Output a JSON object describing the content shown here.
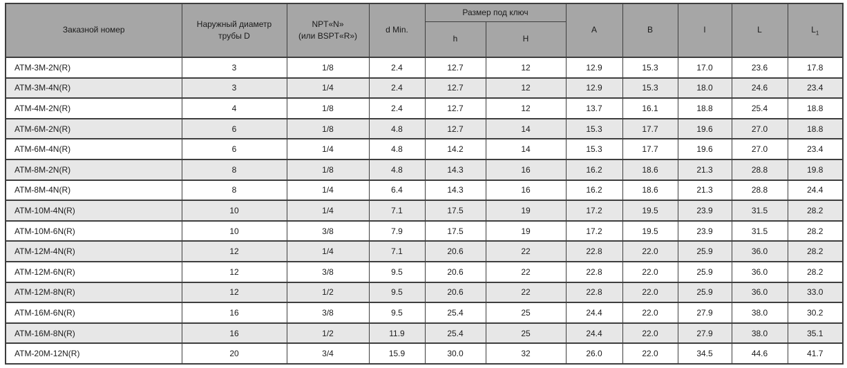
{
  "colors": {
    "header_bg": "#a6a6a6",
    "row_bg": "#ffffff",
    "row_alt_bg": "#e7e7e7",
    "border": "#3d3d3d",
    "text": "#1a1a1a"
  },
  "table": {
    "header": {
      "order_number": "Заказной номер",
      "outer_diameter": "Наружный диаметр\nтрубы D",
      "thread": "NPT«N»\n(или BSPT«R»)",
      "d_min": "d Min.",
      "wrench_size_group": "Размер под ключ",
      "wrench_h": "h",
      "wrench_H": "H",
      "col_A": "A",
      "col_B": "B",
      "col_l": "l",
      "col_L": "L",
      "col_L1_base": "L",
      "col_L1_sub": "1"
    },
    "row_keys": [
      "order",
      "D",
      "npt",
      "d_min",
      "h",
      "H",
      "A",
      "B",
      "l",
      "L",
      "L1"
    ],
    "rows": [
      {
        "order": "ATM-3M-2N(R)",
        "D": "3",
        "npt": "1/8",
        "d_min": "2.4",
        "h": "12.7",
        "H": "12",
        "A": "12.9",
        "B": "15.3",
        "l": "17.0",
        "L": "23.6",
        "L1": "17.8"
      },
      {
        "order": "ATM-3M-4N(R)",
        "D": "3",
        "npt": "1/4",
        "d_min": "2.4",
        "h": "12.7",
        "H": "12",
        "A": "12.9",
        "B": "15.3",
        "l": "18.0",
        "L": "24.6",
        "L1": "23.4"
      },
      {
        "order": "ATM-4M-2N(R)",
        "D": "4",
        "npt": "1/8",
        "d_min": "2.4",
        "h": "12.7",
        "H": "12",
        "A": "13.7",
        "B": "16.1",
        "l": "18.8",
        "L": "25.4",
        "L1": "18.8"
      },
      {
        "order": "ATM-6M-2N(R)",
        "D": "6",
        "npt": "1/8",
        "d_min": "4.8",
        "h": "12.7",
        "H": "14",
        "A": "15.3",
        "B": "17.7",
        "l": "19.6",
        "L": "27.0",
        "L1": "18.8"
      },
      {
        "order": "ATM-6M-4N(R)",
        "D": "6",
        "npt": "1/4",
        "d_min": "4.8",
        "h": "14.2",
        "H": "14",
        "A": "15.3",
        "B": "17.7",
        "l": "19.6",
        "L": "27.0",
        "L1": "23.4"
      },
      {
        "order": "ATM-8M-2N(R)",
        "D": "8",
        "npt": "1/8",
        "d_min": "4.8",
        "h": "14.3",
        "H": "16",
        "A": "16.2",
        "B": "18.6",
        "l": "21.3",
        "L": "28.8",
        "L1": "19.8"
      },
      {
        "order": "ATM-8M-4N(R)",
        "D": "8",
        "npt": "1/4",
        "d_min": "6.4",
        "h": "14.3",
        "H": "16",
        "A": "16.2",
        "B": "18.6",
        "l": "21.3",
        "L": "28.8",
        "L1": "24.4"
      },
      {
        "order": "ATM-10M-4N(R)",
        "D": "10",
        "npt": "1/4",
        "d_min": "7.1",
        "h": "17.5",
        "H": "19",
        "A": "17.2",
        "B": "19.5",
        "l": "23.9",
        "L": "31.5",
        "L1": "28.2"
      },
      {
        "order": "ATM-10M-6N(R)",
        "D": "10",
        "npt": "3/8",
        "d_min": "7.9",
        "h": "17.5",
        "H": "19",
        "A": "17.2",
        "B": "19.5",
        "l": "23.9",
        "L": "31.5",
        "L1": "28.2"
      },
      {
        "order": "ATM-12M-4N(R)",
        "D": "12",
        "npt": "1/4",
        "d_min": "7.1",
        "h": "20.6",
        "H": "22",
        "A": "22.8",
        "B": "22.0",
        "l": "25.9",
        "L": "36.0",
        "L1": "28.2"
      },
      {
        "order": "ATM-12M-6N(R)",
        "D": "12",
        "npt": "3/8",
        "d_min": "9.5",
        "h": "20.6",
        "H": "22",
        "A": "22.8",
        "B": "22.0",
        "l": "25.9",
        "L": "36.0",
        "L1": "28.2"
      },
      {
        "order": "ATM-12M-8N(R)",
        "D": "12",
        "npt": "1/2",
        "d_min": "9.5",
        "h": "20.6",
        "H": "22",
        "A": "22.8",
        "B": "22.0",
        "l": "25.9",
        "L": "36.0",
        "L1": "33.0"
      },
      {
        "order": "ATM-16M-6N(R)",
        "D": "16",
        "npt": "3/8",
        "d_min": "9.5",
        "h": "25.4",
        "H": "25",
        "A": "24.4",
        "B": "22.0",
        "l": "27.9",
        "L": "38.0",
        "L1": "30.2"
      },
      {
        "order": "ATM-16M-8N(R)",
        "D": "16",
        "npt": "1/2",
        "d_min": "11.9",
        "h": "25.4",
        "H": "25",
        "A": "24.4",
        "B": "22.0",
        "l": "27.9",
        "L": "38.0",
        "L1": "35.1"
      },
      {
        "order": "ATM-20M-12N(R)",
        "D": "20",
        "npt": "3/4",
        "d_min": "15.9",
        "h": "30.0",
        "H": "32",
        "A": "26.0",
        "B": "22.0",
        "l": "34.5",
        "L": "44.6",
        "L1": "41.7"
      }
    ]
  }
}
